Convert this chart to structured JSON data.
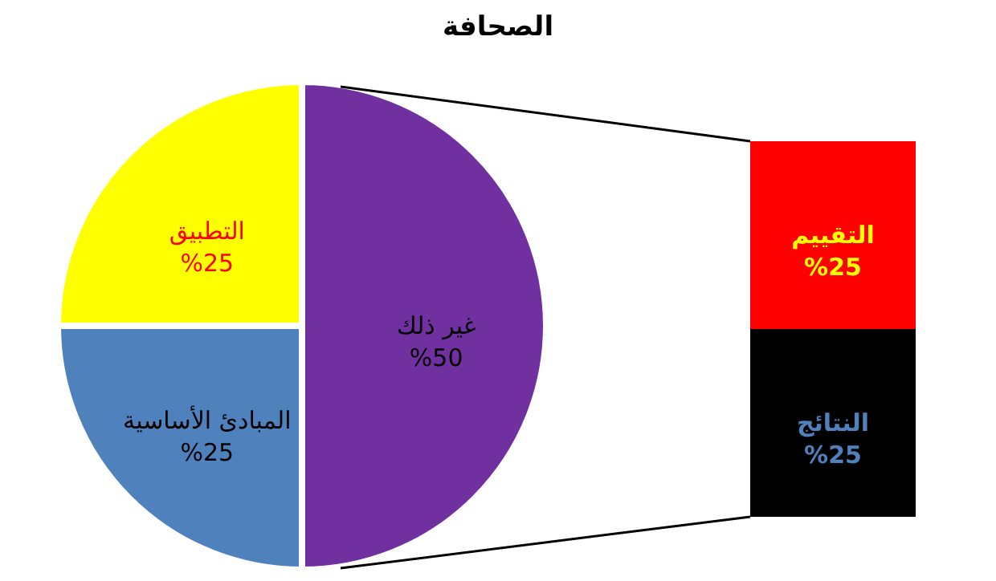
{
  "chart_data": [
    {
      "type": "pie",
      "title": "الصحافة",
      "categories": [
        "غير ذلك",
        "المبادئ الأساسية",
        "التطبيق"
      ],
      "values": [
        50,
        25,
        25
      ],
      "colors": [
        "#7030a0",
        "#4f81bd",
        "#ffff00"
      ],
      "value_labels": [
        "%50",
        "%25",
        "%25"
      ]
    },
    {
      "type": "bar",
      "stacked": true,
      "categories": [
        null
      ],
      "series": [
        {
          "name": "النتائج",
          "color": "#000000",
          "values": [
            25
          ],
          "value_labels": [
            "%25"
          ]
        },
        {
          "name": "التقييم",
          "color": "#ff0000",
          "values": [
            25
          ],
          "value_labels": [
            "%25"
          ]
        }
      ]
    }
  ]
}
